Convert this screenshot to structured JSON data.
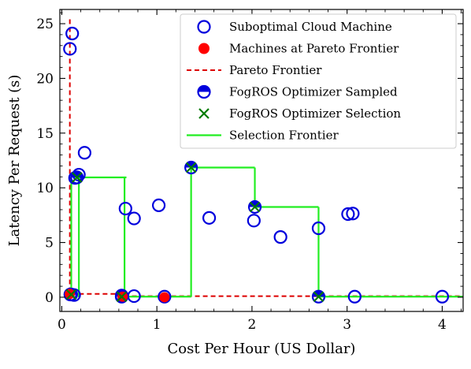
{
  "chart_data": {
    "type": "scatter",
    "title": "",
    "xlabel": "Cost Per Hour (US Dollar)",
    "ylabel": "Latency Per Request (s)",
    "xlim": [
      -0.02,
      4.22
    ],
    "ylim": [
      -1.3,
      26.3
    ],
    "xticks": [
      0,
      1,
      2,
      3,
      4
    ],
    "yticks": [
      0,
      5,
      10,
      15,
      20,
      25
    ],
    "xtick_labels": [
      "0",
      "1",
      "2",
      "3",
      "4"
    ],
    "ytick_labels": [
      "0",
      "5",
      "10",
      "15",
      "20",
      "25"
    ],
    "grid": false,
    "legend_position": "top-right",
    "colors": {
      "suboptimal": "#0000dd",
      "pareto_points": "#ff0000",
      "pareto_line": "#dd0000",
      "sampled": "#0000dd",
      "selection": "#007a00",
      "selection_frontier": "#22ee22"
    },
    "series": [
      {
        "name": "Suboptimal Cloud Machine",
        "marker": "open-circle",
        "points": [
          [
            0.086,
            22.7
          ],
          [
            0.11,
            24.1
          ],
          [
            0.14,
            10.9
          ],
          [
            0.18,
            11.2
          ],
          [
            0.24,
            13.2
          ],
          [
            0.63,
            0.15
          ],
          [
            0.67,
            8.1
          ],
          [
            0.76,
            0.1
          ],
          [
            0.76,
            7.2
          ],
          [
            1.02,
            8.4
          ],
          [
            1.55,
            7.25
          ],
          [
            2.02,
            7.0
          ],
          [
            2.3,
            5.5
          ],
          [
            2.7,
            6.3
          ],
          [
            3.01,
            7.6
          ],
          [
            3.06,
            7.65
          ],
          [
            3.08,
            0.05
          ],
          [
            4.0,
            0.05
          ],
          [
            0.09,
            0.25
          ],
          [
            0.13,
            0.2
          ],
          [
            1.08,
            0.05
          ]
        ]
      },
      {
        "name": "Machines at Pareto Frontier",
        "marker": "filled-circle",
        "points": [
          [
            0.085,
            0.3
          ],
          [
            0.64,
            0.05
          ],
          [
            1.08,
            0.0
          ]
        ]
      },
      {
        "name": "Pareto Frontier",
        "style": "dashed-line",
        "points": [
          [
            0.085,
            25.4
          ],
          [
            0.085,
            0.3
          ],
          [
            0.64,
            0.3
          ],
          [
            0.64,
            0.1
          ],
          [
            1.08,
            0.1
          ],
          [
            4.22,
            0.1
          ]
        ]
      },
      {
        "name": "FogROS Optimizer Sampled",
        "marker": "half-filled-circle",
        "points": [
          [
            0.1,
            0.25
          ],
          [
            0.16,
            10.95
          ],
          [
            0.63,
            0.05
          ],
          [
            1.36,
            11.85
          ],
          [
            2.03,
            8.25
          ],
          [
            2.7,
            0.05
          ]
        ]
      },
      {
        "name": "FogROS Optimizer Selection",
        "marker": "x",
        "points": [
          [
            0.1,
            0.25
          ],
          [
            0.16,
            10.95
          ],
          [
            0.63,
            0.05
          ],
          [
            1.36,
            11.85
          ],
          [
            2.03,
            8.25
          ],
          [
            2.7,
            0.05
          ]
        ]
      },
      {
        "name": "Selection Frontier",
        "style": "solid-line",
        "segments": [
          [
            [
              0.1,
              0.25
            ],
            [
              0.1,
              10.95
            ]
          ],
          [
            [
              0.18,
              10.95
            ],
            [
              0.18,
              0.0
            ]
          ],
          [
            [
              0.16,
              10.95
            ],
            [
              0.68,
              10.95
            ]
          ],
          [
            [
              0.66,
              10.95
            ],
            [
              0.66,
              0.05
            ]
          ],
          [
            [
              0.63,
              0.05
            ],
            [
              1.36,
              0.05
            ]
          ],
          [
            [
              1.36,
              0.05
            ],
            [
              1.36,
              11.85
            ]
          ],
          [
            [
              1.36,
              11.85
            ],
            [
              2.03,
              11.85
            ]
          ],
          [
            [
              2.03,
              11.85
            ],
            [
              2.03,
              8.25
            ]
          ],
          [
            [
              2.03,
              8.25
            ],
            [
              2.7,
              8.25
            ]
          ],
          [
            [
              2.7,
              8.25
            ],
            [
              2.7,
              0.05
            ]
          ],
          [
            [
              2.7,
              0.05
            ],
            [
              4.22,
              0.05
            ]
          ]
        ]
      }
    ]
  }
}
